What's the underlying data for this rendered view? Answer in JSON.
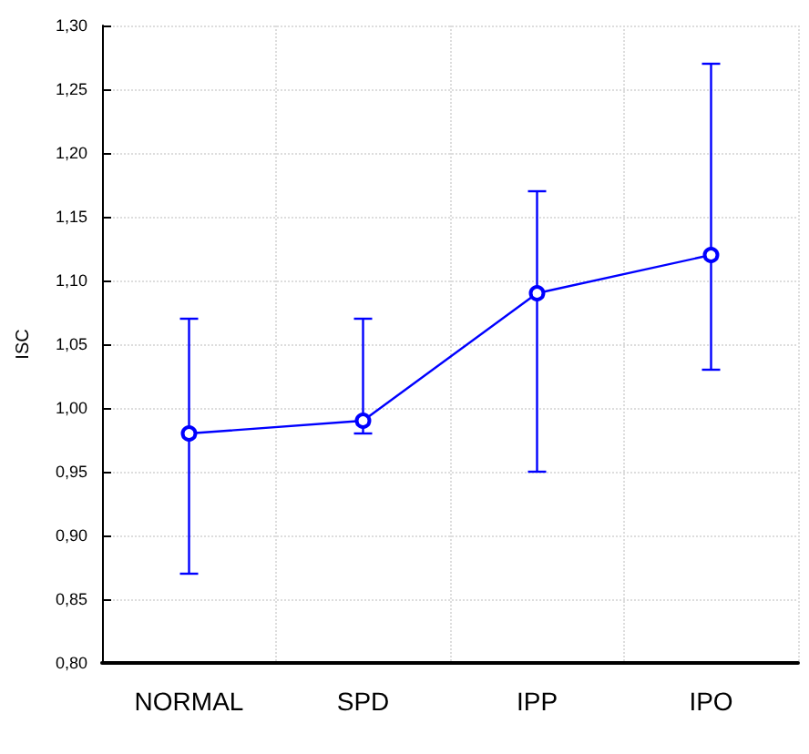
{
  "chart_data": {
    "type": "line",
    "ylabel": "ISC",
    "categories": [
      "NORMAL",
      "SPD",
      "IPP",
      "IPO"
    ],
    "series": [
      {
        "color": "#0000ff",
        "values": [
          0.98,
          0.99,
          1.09,
          1.12
        ],
        "errors": [
          [
            0.87,
            1.07
          ],
          [
            0.98,
            1.07
          ],
          [
            0.95,
            1.17
          ],
          [
            1.03,
            1.27
          ]
        ]
      }
    ],
    "ylim": [
      0.8,
      1.3
    ],
    "yticks": [
      {
        "value": 0.8,
        "label": "0,80"
      },
      {
        "value": 0.85,
        "label": "0,85"
      },
      {
        "value": 0.9,
        "label": "0,90"
      },
      {
        "value": 0.95,
        "label": "0,95"
      },
      {
        "value": 1.0,
        "label": "1,00"
      },
      {
        "value": 1.05,
        "label": "1,05"
      },
      {
        "value": 1.1,
        "label": "1,10"
      },
      {
        "value": 1.15,
        "label": "1,15"
      },
      {
        "value": 1.2,
        "label": "1,20"
      },
      {
        "value": 1.25,
        "label": "1,25"
      },
      {
        "value": 1.3,
        "label": "1,30"
      }
    ],
    "grid": true,
    "marker": "circle",
    "line_style": "solid"
  }
}
